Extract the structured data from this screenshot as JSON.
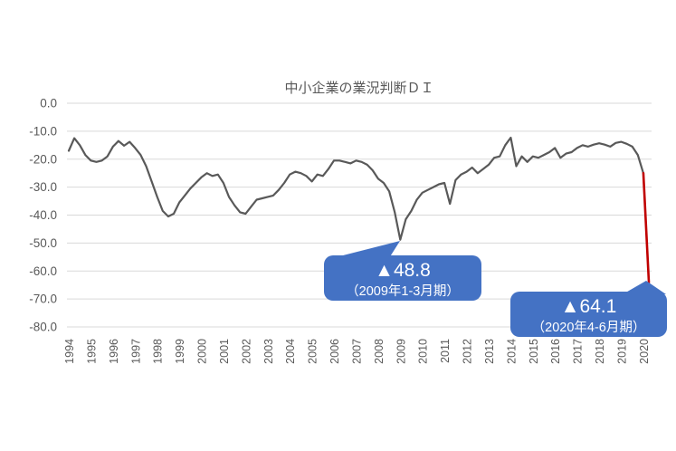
{
  "chart": {
    "title": "中小企業の業況判断ＤＩ",
    "colors": {
      "line": "#595959",
      "drop_line": "#c00000",
      "grid": "#d9d9d9",
      "callout_fill": "#4472c4",
      "callout_text": "#ffffff",
      "axis_text": "#595959",
      "title_text": "#595959"
    },
    "y_axis": {
      "ticks": [
        "0.0",
        "-10.0",
        "-20.0",
        "-30.0",
        "-40.0",
        "-50.0",
        "-60.0",
        "-70.0",
        "-80.0"
      ]
    },
    "x_axis": {
      "years": [
        "1994",
        "1995",
        "1996",
        "1997",
        "1998",
        "1999",
        "2000",
        "2001",
        "2002",
        "2003",
        "2004",
        "2005",
        "2006",
        "2007",
        "2008",
        "2009",
        "2010",
        "2011",
        "2012",
        "2013",
        "2014",
        "2015",
        "2016",
        "2017",
        "2018",
        "2019",
        "2020"
      ]
    },
    "annotations": [
      {
        "value_label": "▲48.8",
        "period_label": "（2009年1-3月期）"
      },
      {
        "value_label": "▲64.1",
        "period_label": "（2020年4-6月期）"
      }
    ]
  },
  "chart_data": {
    "type": "line",
    "title": "中小企業の業況判断ＤＩ",
    "frequency": "quarterly",
    "period_start": "1994Q1",
    "period_end": "2020Q2",
    "x_tick_labels": [
      "1994",
      "1995",
      "1996",
      "1997",
      "1998",
      "1999",
      "2000",
      "2001",
      "2002",
      "2003",
      "2004",
      "2005",
      "2006",
      "2007",
      "2008",
      "2009",
      "2010",
      "2011",
      "2012",
      "2013",
      "2014",
      "2015",
      "2016",
      "2017",
      "2018",
      "2019",
      "2020"
    ],
    "y_tick_labels": [
      "0.0",
      "-10.0",
      "-20.0",
      "-30.0",
      "-40.0",
      "-50.0",
      "-60.0",
      "-70.0",
      "-80.0"
    ],
    "ylim": [
      -80,
      0
    ],
    "grid": true,
    "series": [
      {
        "name": "中小企業の業況判断DI",
        "color": "#595959",
        "values": [
          -17.0,
          -12.5,
          -15.0,
          -18.5,
          -20.5,
          -21.0,
          -20.5,
          -19.0,
          -15.5,
          -13.5,
          -15.2,
          -13.8,
          -16.0,
          -18.5,
          -22.5,
          -28.0,
          -33.5,
          -38.5,
          -40.5,
          -39.5,
          -35.5,
          -33.0,
          -30.5,
          -28.5,
          -26.5,
          -25.0,
          -26.0,
          -25.5,
          -28.5,
          -33.5,
          -36.5,
          -39.0,
          -39.5,
          -37.0,
          -34.5,
          -34.0,
          -33.5,
          -33.0,
          -31.0,
          -28.5,
          -25.5,
          -24.5,
          -25.0,
          -26.0,
          -28.0,
          -25.5,
          -26.0,
          -23.5,
          -20.5,
          -20.5,
          -21.0,
          -21.5,
          -20.5,
          -21.0,
          -22.0,
          -24.0,
          -27.0,
          -28.5,
          -31.5,
          -39.0,
          -48.8,
          -41.5,
          -38.5,
          -34.5,
          -32.0,
          -31.0,
          -30.0,
          -29.0,
          -28.5,
          -36.0,
          -27.5,
          -25.5,
          -24.5,
          -23.0,
          -25.0,
          -23.5,
          -22.0,
          -19.5,
          -19.0,
          -15.0,
          -12.3,
          -22.5,
          -19.0,
          -21.0,
          -19.0,
          -19.5,
          -18.5,
          -17.5,
          -16.0,
          -19.5,
          -18.0,
          -17.5,
          -16.0,
          -15.0,
          -15.5,
          -14.8,
          -14.3,
          -14.8,
          -15.5,
          -14.2,
          -13.8,
          -14.5,
          -15.5,
          -18.5,
          -25.0,
          -64.1
        ]
      }
    ],
    "highlight_segment": {
      "from_index": 104,
      "to_index": 105,
      "color": "#c00000"
    },
    "annotations": [
      {
        "value_label": "▲48.8",
        "period_label": "（2009年1-3月期）",
        "point": "2009Q1",
        "value": -48.8
      },
      {
        "value_label": "▲64.1",
        "period_label": "（2020年4-6月期）",
        "point": "2020Q2",
        "value": -64.1
      }
    ]
  }
}
